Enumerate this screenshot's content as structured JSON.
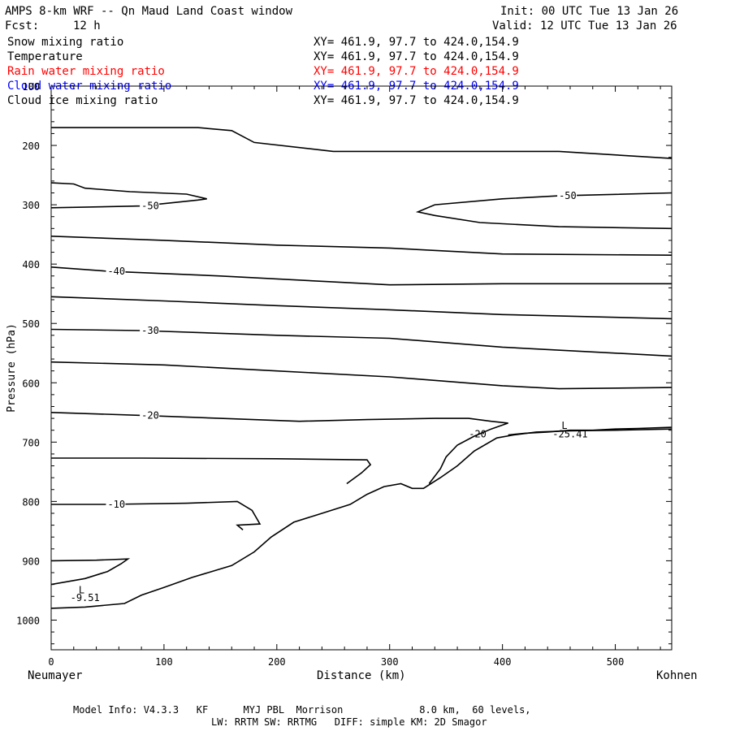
{
  "header": {
    "title": "AMPS 8-km WRF -- Qn Maud Land Coast window",
    "fcst_label": "Fcst:",
    "fcst_value": "12 h",
    "init": "Init: 00 UTC Tue 13 Jan 26",
    "valid": "Valid: 12 UTC Tue 13 Jan 26"
  },
  "legend": [
    {
      "name": "Snow mixing ratio",
      "xy": "XY= 461.9, 97.7 to 424.0,154.9",
      "color": "#000000"
    },
    {
      "name": "Temperature",
      "xy": "XY= 461.9, 97.7 to 424.0,154.9",
      "color": "#000000"
    },
    {
      "name": "Rain water mixing ratio",
      "xy": "XY= 461.9, 97.7 to 424.0,154.9",
      "color": "#ff0000"
    },
    {
      "name": "Cloud water mixing ratio",
      "xy": "XY= 461.9, 97.7 to 424.0,154.9",
      "color": "#0000ff"
    },
    {
      "name": "Cloud ice mixing ratio",
      "xy": "XY= 461.9, 97.7 to 424.0,154.9",
      "color": "#000000"
    }
  ],
  "axes": {
    "xlabel": "Distance (km)",
    "ylabel": "Pressure (hPa)",
    "left_station": "Neumayer",
    "right_station": "Kohnen"
  },
  "footer": {
    "line1": "Model Info: V4.3.3   KF      MYJ PBL  Morrison             8.0 km,  60 levels,",
    "line2": "LW: RRTM SW: RRTMG   DIFF: simple KM: 2D Smagor"
  },
  "chart_data": {
    "type": "line",
    "title": "AMPS 8-km WRF -- Qn Maud Land Coast window",
    "xlabel": "Distance (km)",
    "ylabel": "Pressure (hPa)",
    "xlim": [
      0,
      550
    ],
    "ylim": [
      100,
      1050
    ],
    "x_ticks": [
      0,
      100,
      200,
      300,
      400,
      500
    ],
    "y_ticks": [
      100,
      200,
      300,
      400,
      500,
      600,
      700,
      800,
      900,
      1000
    ],
    "series": [
      {
        "name": "upper_contour",
        "points": [
          [
            0,
            170
          ],
          [
            50,
            170
          ],
          [
            130,
            170
          ],
          [
            160,
            175
          ],
          [
            180,
            195
          ],
          [
            250,
            210
          ],
          [
            350,
            210
          ],
          [
            450,
            210
          ],
          [
            550,
            222
          ]
        ]
      },
      {
        "name": "-50 closed left",
        "label": "-50",
        "points": [
          [
            0,
            305
          ],
          [
            80,
            302
          ],
          [
            130,
            292
          ],
          [
            138,
            290
          ],
          [
            120,
            282
          ],
          [
            70,
            278
          ],
          [
            30,
            272
          ],
          [
            20,
            265
          ],
          [
            0,
            263
          ]
        ]
      },
      {
        "name": "-50 right",
        "label": "-50",
        "points": [
          [
            550,
            280
          ],
          [
            450,
            285
          ],
          [
            400,
            290
          ],
          [
            340,
            300
          ],
          [
            325,
            312
          ],
          [
            340,
            318
          ],
          [
            380,
            330
          ],
          [
            450,
            337
          ],
          [
            550,
            340
          ]
        ]
      },
      {
        "name": "-45",
        "points": [
          [
            0,
            353
          ],
          [
            100,
            360
          ],
          [
            200,
            368
          ],
          [
            300,
            373
          ],
          [
            400,
            383
          ],
          [
            550,
            385
          ]
        ]
      },
      {
        "name": "-40",
        "label": "-40",
        "points": [
          [
            0,
            405
          ],
          [
            50,
            412
          ],
          [
            150,
            420
          ],
          [
            250,
            430
          ],
          [
            300,
            435
          ],
          [
            400,
            433
          ],
          [
            550,
            433
          ]
        ]
      },
      {
        "name": "-35",
        "points": [
          [
            0,
            455
          ],
          [
            100,
            462
          ],
          [
            200,
            470
          ],
          [
            300,
            477
          ],
          [
            400,
            485
          ],
          [
            550,
            492
          ]
        ]
      },
      {
        "name": "-30",
        "label": "-30",
        "points": [
          [
            0,
            510
          ],
          [
            80,
            512
          ],
          [
            200,
            520
          ],
          [
            300,
            525
          ],
          [
            400,
            540
          ],
          [
            550,
            555
          ]
        ]
      },
      {
        "name": "-25",
        "points": [
          [
            0,
            565
          ],
          [
            100,
            570
          ],
          [
            200,
            580
          ],
          [
            300,
            590
          ],
          [
            400,
            605
          ],
          [
            450,
            610
          ],
          [
            550,
            608
          ]
        ]
      },
      {
        "name": "-20",
        "label": "-20",
        "points": [
          [
            0,
            650
          ],
          [
            80,
            655
          ],
          [
            150,
            660
          ],
          [
            220,
            665
          ],
          [
            280,
            662
          ],
          [
            340,
            660
          ],
          [
            370,
            660
          ],
          [
            390,
            665
          ],
          [
            405,
            668
          ],
          [
            390,
            678
          ],
          [
            375,
            690
          ],
          [
            360,
            705
          ],
          [
            350,
            725
          ],
          [
            345,
            745
          ],
          [
            335,
            770
          ]
        ]
      },
      {
        "name": "-25.41 boundary",
        "points": [
          [
            405,
            688
          ],
          [
            420,
            685
          ],
          [
            440,
            683
          ],
          [
            460,
            680
          ],
          [
            480,
            680
          ],
          [
            500,
            678
          ],
          [
            520,
            677
          ],
          [
            550,
            675
          ]
        ]
      },
      {
        "name": "-15",
        "points": [
          [
            0,
            727
          ],
          [
            80,
            727
          ],
          [
            200,
            728
          ],
          [
            280,
            730
          ],
          [
            283,
            738
          ],
          [
            275,
            752
          ],
          [
            262,
            770
          ]
        ]
      },
      {
        "name": "terrain",
        "points": [
          [
            0,
            980
          ],
          [
            30,
            978
          ],
          [
            65,
            972
          ],
          [
            80,
            958
          ],
          [
            100,
            945
          ],
          [
            125,
            928
          ],
          [
            160,
            908
          ],
          [
            180,
            885
          ],
          [
            195,
            860
          ],
          [
            215,
            835
          ],
          [
            240,
            820
          ],
          [
            265,
            805
          ],
          [
            280,
            788
          ],
          [
            295,
            775
          ],
          [
            310,
            770
          ],
          [
            320,
            778
          ],
          [
            330,
            778
          ],
          [
            345,
            760
          ],
          [
            360,
            740
          ],
          [
            375,
            715
          ],
          [
            395,
            693
          ],
          [
            410,
            688
          ],
          [
            430,
            683
          ],
          [
            460,
            681
          ],
          [
            500,
            680
          ],
          [
            550,
            678
          ]
        ]
      },
      {
        "name": "-10",
        "label": "-10",
        "points": [
          [
            0,
            805
          ],
          [
            50,
            805
          ],
          [
            120,
            803
          ],
          [
            165,
            800
          ],
          [
            178,
            815
          ],
          [
            185,
            838
          ],
          [
            165,
            840
          ],
          [
            170,
            848
          ]
        ]
      },
      {
        "name": "-5",
        "points": [
          [
            0,
            900
          ],
          [
            40,
            899
          ],
          [
            68,
            897
          ],
          [
            62,
            905
          ],
          [
            50,
            918
          ],
          [
            30,
            930
          ],
          [
            0,
            940
          ]
        ]
      }
    ],
    "annotations": [
      {
        "text": "L",
        "x": 27,
        "y": 955
      },
      {
        "text": "-9.51",
        "x": 30,
        "y": 968
      },
      {
        "text": "L",
        "x": 455,
        "y": 678
      },
      {
        "text": "-25.41",
        "x": 460,
        "y": 692
      },
      {
        "text": "-20",
        "x": 378,
        "y": 692
      }
    ]
  }
}
